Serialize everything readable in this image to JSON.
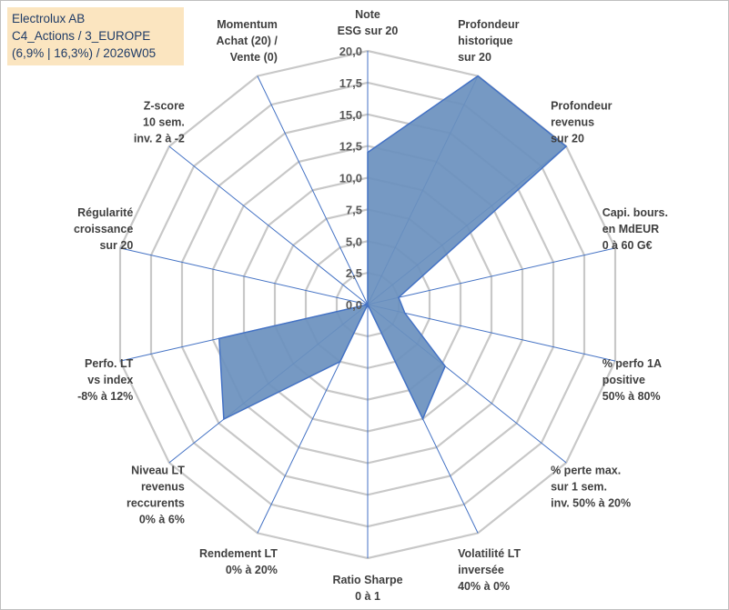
{
  "header": {
    "line1": "Electrolux AB",
    "line2": "C4_Actions / 3_EUROPE",
    "line3": "(6,9% | 16,3%) / 2026W05"
  },
  "chart_data": {
    "type": "radar",
    "rmin": 0,
    "rmax": 20,
    "tick_step": 2.5,
    "tick_labels": [
      "0,0",
      "2,5",
      "5,0",
      "7,5",
      "10,0",
      "12,5",
      "15,0",
      "17,5",
      "20,0"
    ],
    "grid": true,
    "colors": {
      "fill": "#6a90be",
      "stroke": "#4472c4",
      "grid": "#c8c8c8",
      "spoke": "#4472c4"
    },
    "axes": [
      {
        "lines": [
          "Note",
          "ESG sur 20"
        ],
        "value": 12
      },
      {
        "lines": [
          "Profondeur",
          "historique",
          "sur 20"
        ],
        "value": 20
      },
      {
        "lines": [
          "Profondeur",
          "revenus",
          "sur 20"
        ],
        "value": 20
      },
      {
        "lines": [
          "Capi. bours.",
          "en MdEUR",
          "0 à 60 G€"
        ],
        "value": 2.5
      },
      {
        "lines": [
          "% perfo 1A",
          "positive",
          "50% à 80%"
        ],
        "value": 3
      },
      {
        "lines": [
          "% perte max.",
          "sur 1 sem.",
          "inv. 50% à 20%"
        ],
        "value": 7.8
      },
      {
        "lines": [
          "Volatilité LT",
          "inversée",
          "40% à 0%"
        ],
        "value": 10
      },
      {
        "lines": [
          "Ratio Sharpe",
          "0 à 1"
        ],
        "value": 0
      },
      {
        "lines": [
          "Rendement LT",
          "0% à 20%"
        ],
        "value": 5
      },
      {
        "lines": [
          "Niveau LT",
          "revenus",
          "reccurents",
          "0% à 6%"
        ],
        "value": 14.5
      },
      {
        "lines": [
          "Perfo. LT",
          "vs index",
          "-8% à 12%"
        ],
        "value": 12
      },
      {
        "lines": [
          "Régularité",
          "croissance",
          "sur 20"
        ],
        "value": 0
      },
      {
        "lines": [
          "Z-score",
          "10 sem.",
          "inv. 2 à -2"
        ],
        "value": 0
      },
      {
        "lines": [
          "Momentum",
          "Achat (20) /",
          "Vente (0)"
        ],
        "value": 0
      }
    ]
  }
}
